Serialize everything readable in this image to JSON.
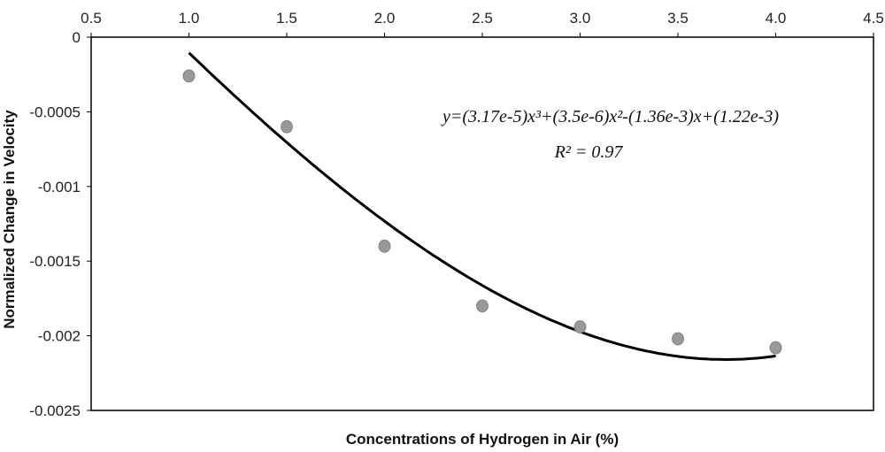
{
  "chart_data": {
    "type": "scatter",
    "title": "",
    "xlabel": "Concentrations of Hydrogen in Air (%)",
    "ylabel": "Normalized Change in Velocity",
    "xlim": [
      0.5,
      4.5
    ],
    "ylim": [
      -0.0025,
      0
    ],
    "x_ticks": [
      "0.5",
      "1.0",
      "1.5",
      "2.0",
      "2.5",
      "3.0",
      "3.5",
      "4.0",
      "4.5"
    ],
    "y_ticks": [
      "0",
      "-0.0005",
      "-0.001",
      "-0.0015",
      "-0.002",
      "-0.0025"
    ],
    "x_axis_position": "top",
    "grid": false,
    "points": {
      "x": [
        1.0,
        1.5,
        2.0,
        2.5,
        3.0,
        3.5,
        4.0
      ],
      "y": [
        -0.00026,
        -0.0006,
        -0.0014,
        -0.0018,
        -0.00194,
        -0.00202,
        -0.00208
      ]
    },
    "fit": {
      "type": "polynomial",
      "x_range": [
        1.0,
        4.0
      ],
      "coefficients": [
        3.17e-05,
        3.5e-06,
        -0.00136,
        0.00122
      ]
    },
    "marker_color": "#999999",
    "line_color": "#000000",
    "annotations": {
      "equation": "y=(3.17e-5)x³+(3.5e-6)x²-(1.36e-3)x+(1.22e-3)",
      "r_squared": "R² = 0.97"
    }
  }
}
